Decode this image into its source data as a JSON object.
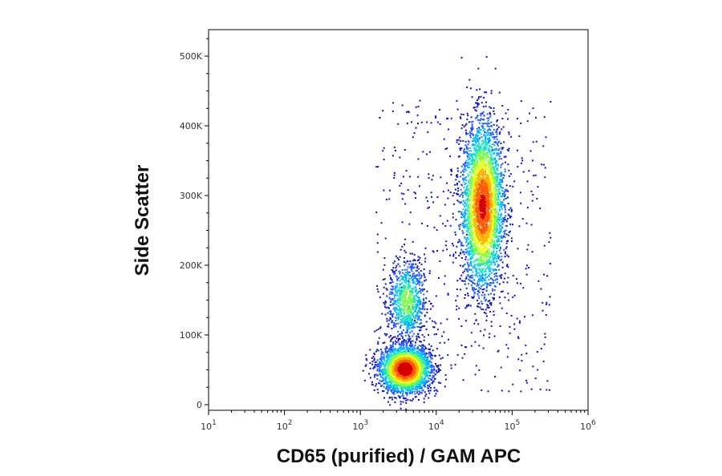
{
  "chart_data": {
    "type": "scatter",
    "subtype": "flow-cytometry density dot plot",
    "title": "",
    "xlabel": "CD65 (purified) / GAM APC",
    "ylabel": "Side Scatter",
    "x_scale": "log",
    "x_range": [
      10,
      1000000
    ],
    "y_range": [
      0,
      540000
    ],
    "x_ticks": [
      {
        "value": 10,
        "base": "10",
        "exp": "1"
      },
      {
        "value": 100,
        "base": "10",
        "exp": "2"
      },
      {
        "value": 1000,
        "base": "10",
        "exp": "3"
      },
      {
        "value": 10000,
        "base": "10",
        "exp": "4"
      },
      {
        "value": 100000,
        "base": "10",
        "exp": "5"
      },
      {
        "value": 1000000,
        "base": "10",
        "exp": "6"
      }
    ],
    "y_ticks": [
      {
        "value": 0,
        "label": "0"
      },
      {
        "value": 100000,
        "label": "100K"
      },
      {
        "value": 200000,
        "label": "200K"
      },
      {
        "value": 300000,
        "label": "300K"
      },
      {
        "value": 400000,
        "label": "400K"
      },
      {
        "value": 500000,
        "label": "500K"
      }
    ],
    "grid": false,
    "legend": "none",
    "color_scale": [
      "#1010c8",
      "#1f5cff",
      "#00b7ff",
      "#19e3c0",
      "#7cff4a",
      "#e6ff1f",
      "#ffb000",
      "#ff5a00",
      "#d40000"
    ],
    "populations": [
      {
        "x_center": 3800,
        "y_center": 52000,
        "x_log_sd": 0.17,
        "y_sd": 17000,
        "peak_density": 1.0,
        "points": 2600
      },
      {
        "x_center": 4000,
        "y_center": 150000,
        "x_log_sd": 0.12,
        "y_sd": 28000,
        "peak_density": 0.45,
        "points": 800
      },
      {
        "x_center": 40000,
        "y_center": 285000,
        "x_log_sd": 0.14,
        "y_sd": 60000,
        "peak_density": 0.9,
        "points": 3400
      }
    ]
  }
}
